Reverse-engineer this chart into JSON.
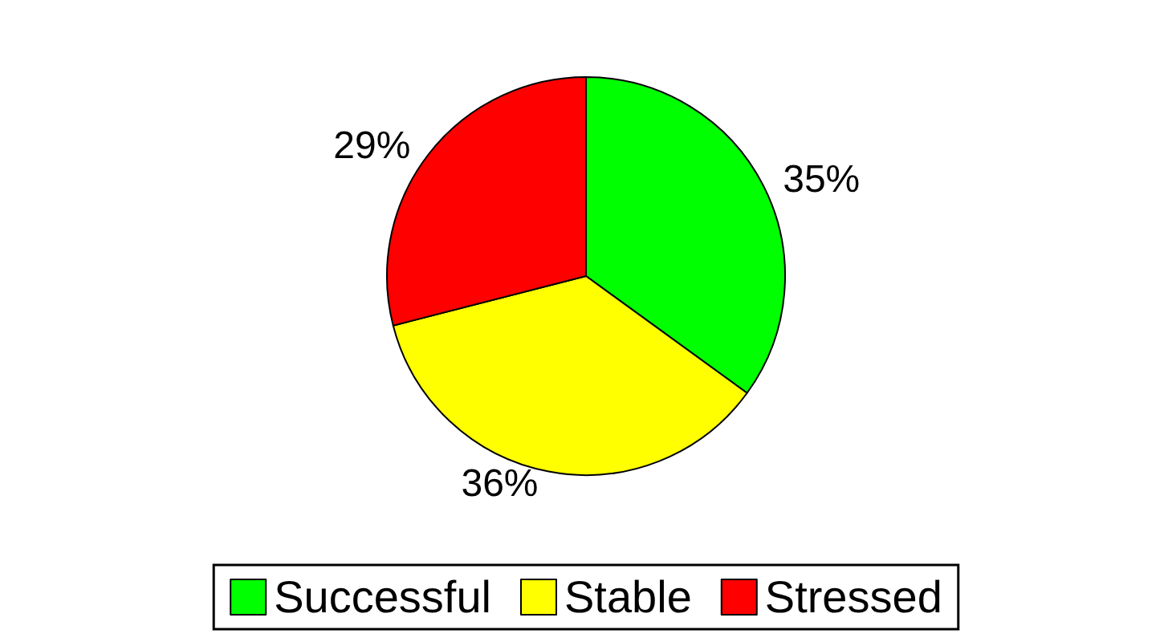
{
  "chart_data": {
    "type": "pie",
    "categories": [
      "Successful",
      "Stable",
      "Stressed"
    ],
    "values": [
      35,
      36,
      29
    ],
    "colors": [
      "#00ff00",
      "#ffff00",
      "#ff0000"
    ],
    "value_labels": [
      "35%",
      "36%",
      "29%"
    ],
    "legend": "bottom"
  }
}
